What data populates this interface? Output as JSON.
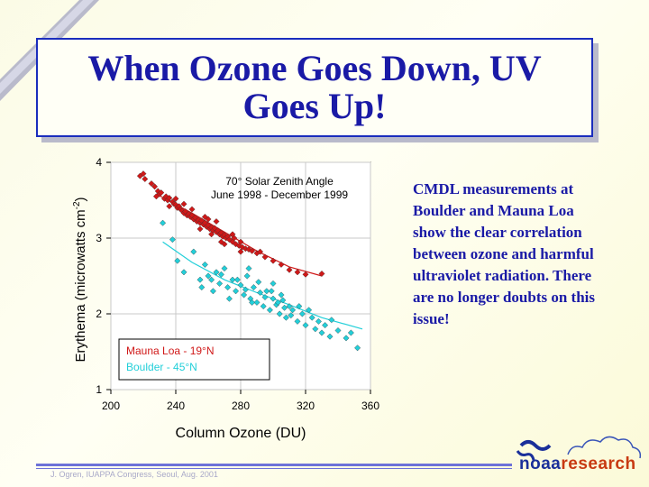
{
  "slide": {
    "title": "When Ozone Goes Down, UV Goes Up!",
    "caption": "CMDL measurements at Boulder and Mauna Loa show the clear correlation between ozone and harmful ultraviolet radiation. There are no longer doubts on this issue!",
    "footer": "J. Ogren, IUAPPA Congress, Seoul, Aug. 2001",
    "logo": {
      "part1": "noaa",
      "part2": "research"
    }
  },
  "colors": {
    "title": "#1a1aa6",
    "mauna_loa": "#d01818",
    "boulder": "#22cfd9"
  },
  "chart_data": {
    "type": "scatter",
    "xlabel": "Column Ozone (DU)",
    "ylabel": "Erythema (microwatts cm",
    "ylabel_sup": "-2",
    "ylabel_end": ")",
    "xlim": [
      200,
      360
    ],
    "ylim": [
      1,
      4
    ],
    "x_ticks": [
      200,
      240,
      280,
      320,
      360
    ],
    "y_ticks": [
      1,
      2,
      3,
      4
    ],
    "grid": true,
    "annotation": [
      "70° Solar Zenith Angle",
      "June 1998 - December 1999"
    ],
    "legend_position": "bottom-left",
    "series": [
      {
        "name": "Mauna Loa - 19°N",
        "color": "#d01818",
        "fit": [
          [
            230,
            3.56
          ],
          [
            250,
            3.33
          ],
          [
            270,
            3.08
          ],
          [
            290,
            2.83
          ],
          [
            310,
            2.62
          ],
          [
            330,
            2.5
          ]
        ],
        "points": [
          [
            218,
            3.82
          ],
          [
            220,
            3.85
          ],
          [
            221,
            3.78
          ],
          [
            225,
            3.72
          ],
          [
            227,
            3.68
          ],
          [
            229,
            3.62
          ],
          [
            230,
            3.58
          ],
          [
            231,
            3.6
          ],
          [
            233,
            3.52
          ],
          [
            234,
            3.55
          ],
          [
            235,
            3.5
          ],
          [
            236,
            3.53
          ],
          [
            238,
            3.48
          ],
          [
            239,
            3.45
          ],
          [
            240,
            3.44
          ],
          [
            241,
            3.4
          ],
          [
            242,
            3.42
          ],
          [
            243,
            3.38
          ],
          [
            244,
            3.36
          ],
          [
            245,
            3.33
          ],
          [
            246,
            3.35
          ],
          [
            247,
            3.3
          ],
          [
            248,
            3.32
          ],
          [
            249,
            3.28
          ],
          [
            250,
            3.3
          ],
          [
            251,
            3.25
          ],
          [
            252,
            3.27
          ],
          [
            253,
            3.22
          ],
          [
            254,
            3.24
          ],
          [
            255,
            3.2
          ],
          [
            256,
            3.23
          ],
          [
            257,
            3.18
          ],
          [
            258,
            3.2
          ],
          [
            259,
            3.15
          ],
          [
            260,
            3.17
          ],
          [
            261,
            3.12
          ],
          [
            262,
            3.14
          ],
          [
            263,
            3.1
          ],
          [
            264,
            3.13
          ],
          [
            265,
            3.08
          ],
          [
            266,
            3.1
          ],
          [
            267,
            3.05
          ],
          [
            268,
            3.07
          ],
          [
            269,
            3.02
          ],
          [
            270,
            3.04
          ],
          [
            271,
            3.0
          ],
          [
            272,
            3.02
          ],
          [
            273,
            2.98
          ],
          [
            275,
            2.95
          ],
          [
            276,
            3.0
          ],
          [
            277,
            2.92
          ],
          [
            279,
            2.9
          ],
          [
            280,
            2.95
          ],
          [
            281,
            2.88
          ],
          [
            283,
            2.86
          ],
          [
            285,
            2.85
          ],
          [
            287,
            2.83
          ],
          [
            290,
            2.8
          ],
          [
            292,
            2.82
          ],
          [
            295,
            2.75
          ],
          [
            300,
            2.7
          ],
          [
            305,
            2.65
          ],
          [
            310,
            2.58
          ],
          [
            315,
            2.55
          ],
          [
            320,
            2.52
          ],
          [
            330,
            2.53
          ],
          [
            245,
            3.45
          ],
          [
            250,
            3.38
          ],
          [
            255,
            3.12
          ],
          [
            260,
            3.25
          ],
          [
            265,
            3.22
          ],
          [
            270,
            2.92
          ],
          [
            275,
            3.05
          ],
          [
            240,
            3.52
          ],
          [
            262,
            3.05
          ],
          [
            268,
            2.95
          ],
          [
            280,
            2.82
          ],
          [
            258,
            3.28
          ],
          [
            236,
            3.42
          ],
          [
            228,
            3.55
          ]
        ]
      },
      {
        "name": "Boulder - 45°N",
        "color": "#22cfd9",
        "fit": [
          [
            232,
            2.95
          ],
          [
            250,
            2.68
          ],
          [
            270,
            2.45
          ],
          [
            290,
            2.28
          ],
          [
            310,
            2.12
          ],
          [
            330,
            1.95
          ],
          [
            355,
            1.8
          ]
        ],
        "points": [
          [
            232,
            3.2
          ],
          [
            238,
            2.98
          ],
          [
            241,
            2.7
          ],
          [
            251,
            2.82
          ],
          [
            245,
            2.55
          ],
          [
            260,
            2.5
          ],
          [
            262,
            2.45
          ],
          [
            265,
            2.55
          ],
          [
            267,
            2.4
          ],
          [
            270,
            2.6
          ],
          [
            272,
            2.35
          ],
          [
            275,
            2.45
          ],
          [
            277,
            2.3
          ],
          [
            280,
            2.38
          ],
          [
            282,
            2.25
          ],
          [
            284,
            2.5
          ],
          [
            286,
            2.2
          ],
          [
            288,
            2.35
          ],
          [
            290,
            2.15
          ],
          [
            292,
            2.28
          ],
          [
            294,
            2.1
          ],
          [
            296,
            2.3
          ],
          [
            298,
            2.05
          ],
          [
            300,
            2.2
          ],
          [
            302,
            2.12
          ],
          [
            304,
            2.0
          ],
          [
            306,
            2.18
          ],
          [
            308,
            1.95
          ],
          [
            310,
            2.1
          ],
          [
            312,
            2.05
          ],
          [
            315,
            1.9
          ],
          [
            318,
            2.0
          ],
          [
            320,
            1.85
          ],
          [
            322,
            2.05
          ],
          [
            324,
            1.95
          ],
          [
            326,
            1.8
          ],
          [
            328,
            1.9
          ],
          [
            330,
            1.75
          ],
          [
            332,
            1.85
          ],
          [
            335,
            1.7
          ],
          [
            340,
            1.78
          ],
          [
            345,
            1.68
          ],
          [
            348,
            1.75
          ],
          [
            352,
            1.55
          ],
          [
            256,
            2.35
          ],
          [
            258,
            2.65
          ],
          [
            263,
            2.3
          ],
          [
            268,
            2.52
          ],
          [
            273,
            2.2
          ],
          [
            278,
            2.45
          ],
          [
            283,
            2.32
          ],
          [
            287,
            2.15
          ],
          [
            291,
            2.42
          ],
          [
            295,
            2.22
          ],
          [
            299,
            2.3
          ],
          [
            303,
            2.15
          ],
          [
            307,
            2.08
          ],
          [
            311,
            1.98
          ],
          [
            255,
            2.45
          ],
          [
            285,
            2.6
          ],
          [
            300,
            2.4
          ],
          [
            305,
            2.25
          ],
          [
            316,
            2.1
          ],
          [
            336,
            1.92
          ]
        ]
      }
    ]
  }
}
